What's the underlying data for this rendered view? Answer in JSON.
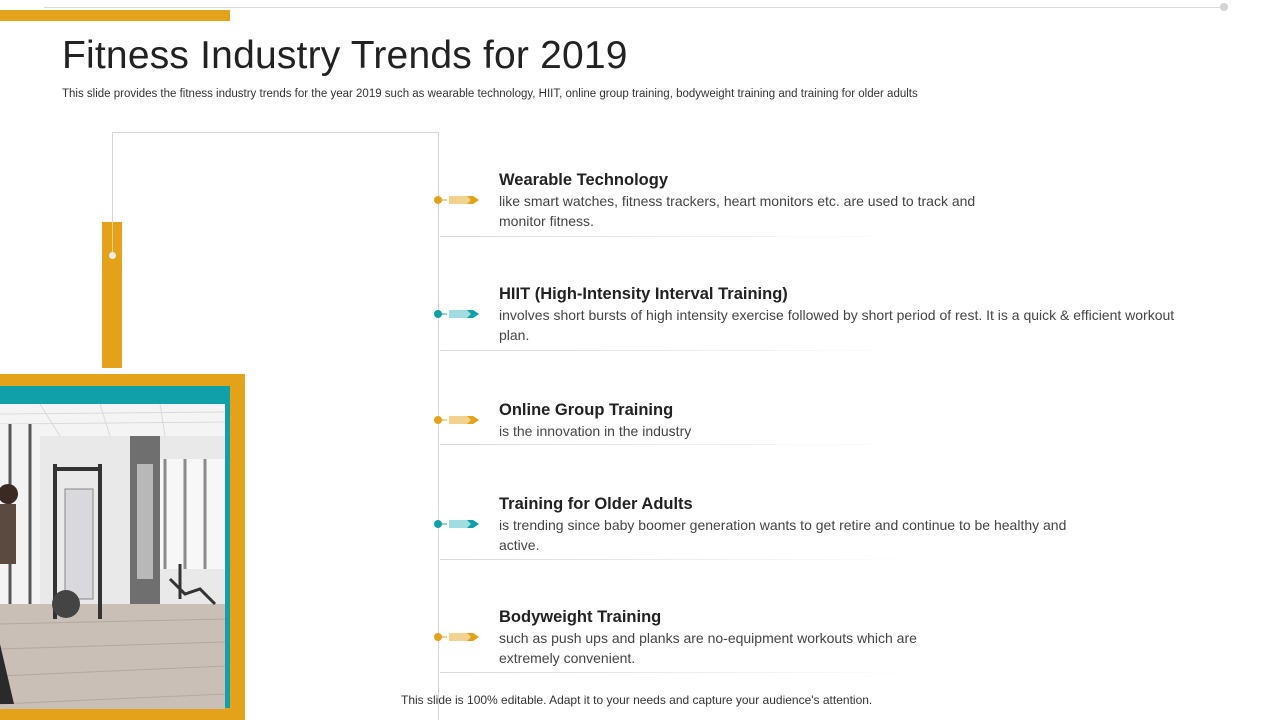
{
  "slide": {
    "title": "Fitness Industry Trends for 2019",
    "subtitle": "This slide provides the fitness industry trends for the year 2019 such as wearable technology, HIIT, online group training, bodyweight training and training for older adults",
    "footer": "This slide is 100% editable. Adapt it to your needs and capture your audience's attention."
  },
  "colors": {
    "accent_orange": "#E3A21A",
    "accent_teal": "#10A0AA"
  },
  "image": {
    "icon": "gym-photo-icon"
  },
  "trends": [
    {
      "title": "Wearable Technology",
      "desc": "like smart watches, fitness trackers, heart monitors etc. are used to track and monitor fitness.",
      "marker_color": "orange"
    },
    {
      "title": "HIIT (High-Intensity Interval Training)",
      "desc": "involves short bursts of high intensity exercise followed by short period of rest. It is a quick & efficient workout plan.",
      "marker_color": "teal"
    },
    {
      "title": "Online Group Training",
      "desc": "is the innovation in the industry",
      "marker_color": "orange"
    },
    {
      "title": "Training for Older Adults",
      "desc": "is trending since baby boomer generation wants to get retire and continue to be healthy and active.",
      "marker_color": "teal"
    },
    {
      "title": "Bodyweight Training",
      "desc": "such as push ups and planks are no-equipment workouts which are extremely convenient.",
      "marker_color": "orange"
    }
  ]
}
